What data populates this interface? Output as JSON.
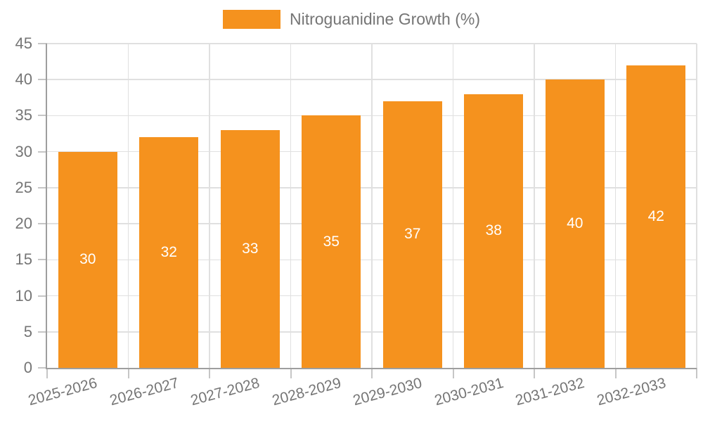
{
  "legend": {
    "label": "Nitroguanidine Growth (%)"
  },
  "colors": {
    "bar": "#F5921E",
    "grid": "#E0E0E0",
    "tick": "#C6C6C6",
    "axis": "#9E9E9E",
    "text": "#757575",
    "value_label": "#FFFFFF",
    "background": "#FFFFFF"
  },
  "chart_data": {
    "type": "bar",
    "title": "",
    "xlabel": "",
    "ylabel": "",
    "categories": [
      "2025-2026",
      "2026-2027",
      "2027-2028",
      "2028-2029",
      "2029-2030",
      "2030-2031",
      "2031-2032",
      "2032-2033"
    ],
    "series": [
      {
        "name": "Nitroguanidine Growth (%)",
        "values": [
          30,
          32,
          33,
          35,
          37,
          38,
          40,
          42
        ]
      }
    ],
    "value_labels_inside_bars": true,
    "ylim": [
      0,
      45
    ],
    "yticks": [
      0,
      5,
      10,
      15,
      20,
      25,
      30,
      35,
      40,
      45
    ],
    "grid": true,
    "grid_vertical": true,
    "legend_position": "top-center",
    "x_label_rotation_deg": -15
  }
}
